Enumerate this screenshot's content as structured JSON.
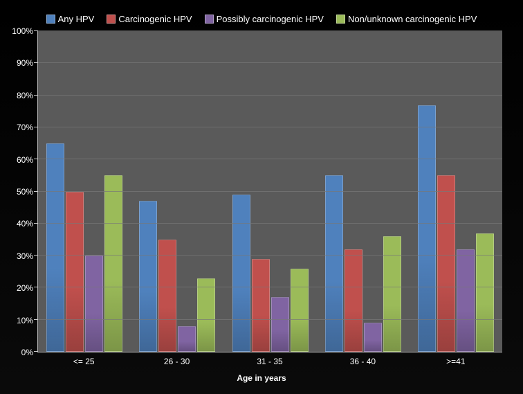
{
  "chart": {
    "type": "bar",
    "background_color": "#000000",
    "plot_background": "#5a5a5a",
    "grid_color": "#777777",
    "text_color": "#ffffff",
    "tick_fontsize": 12,
    "legend_fontsize": 13,
    "x_title": "Age in years",
    "x_title_fontsize": 12,
    "ylim": [
      0,
      100
    ],
    "ytick_step": 10,
    "ytick_suffix": "%",
    "bar_border": "rgba(255,255,255,0.25)",
    "series": [
      {
        "name": "Any HPV",
        "color": "#4f81bd"
      },
      {
        "name": "Carcinogenic HPV",
        "color": "#c0504d"
      },
      {
        "name": "Possibly carcinogenic HPV",
        "color": "#8064a2"
      },
      {
        "name": "Non/unknown carcinogenic HPV",
        "color": "#9bbb59"
      }
    ],
    "categories": [
      "<= 25",
      "26 - 30",
      "31 - 35",
      "36 - 40",
      ">=41"
    ],
    "values": [
      [
        65,
        50,
        30,
        55
      ],
      [
        47,
        35,
        8,
        23
      ],
      [
        49,
        29,
        17,
        26
      ],
      [
        55,
        32,
        9,
        36
      ],
      [
        77,
        55,
        32,
        37
      ]
    ]
  }
}
